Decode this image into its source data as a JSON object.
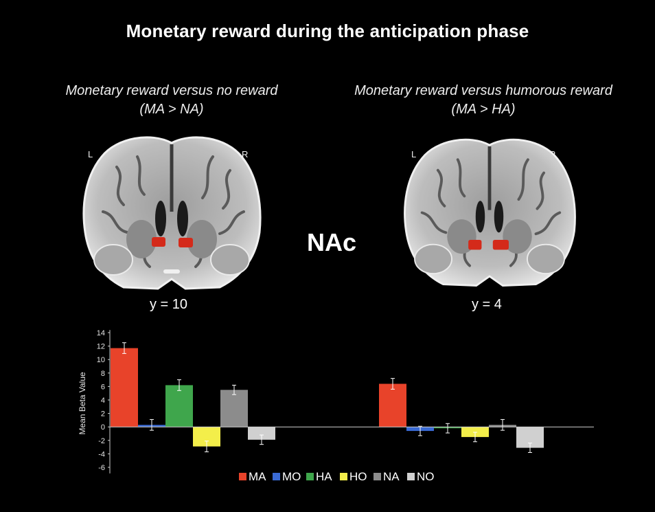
{
  "title": "Monetary reward during the anticipation phase",
  "panels": [
    {
      "line1": "Monetary reward versus no reward",
      "line2": "(MA > NA)",
      "left_label": "L",
      "right_label": "R",
      "coordinate": "y = 10"
    },
    {
      "line1": "Monetary reward versus humorous reward",
      "line2": "(MA > HA)",
      "left_label": "L",
      "right_label": "R",
      "coordinate": "y = 4"
    }
  ],
  "region_label": "NAc",
  "colors": {
    "activation": "#d42a1a",
    "MA": "#e8432a",
    "MO": "#3a6ad4",
    "HA": "#3fa64c",
    "HO": "#f3ee4a",
    "NA": "#8c8c8c",
    "NO": "#d0d0d0"
  },
  "chart_data": {
    "type": "bar",
    "ylabel": "Mean Beta Value",
    "ylim": [
      -7,
      14
    ],
    "yticks": [
      14,
      12,
      10,
      8,
      6,
      4,
      2,
      0,
      -2,
      -4,
      -6
    ],
    "legend_position": "bottom",
    "conditions": [
      "MA",
      "MO",
      "HA",
      "HO",
      "NA",
      "NO"
    ],
    "groups": [
      {
        "values": [
          11.7,
          0.3,
          6.2,
          -2.9,
          5.5,
          -1.9
        ],
        "errors": [
          0.8,
          0.8,
          0.8,
          0.8,
          0.7,
          0.7
        ]
      },
      {
        "values": [
          6.4,
          -0.6,
          -0.2,
          -1.5,
          0.3,
          -3.1
        ],
        "errors": [
          0.8,
          0.7,
          0.7,
          0.7,
          0.8,
          0.7
        ]
      }
    ]
  }
}
